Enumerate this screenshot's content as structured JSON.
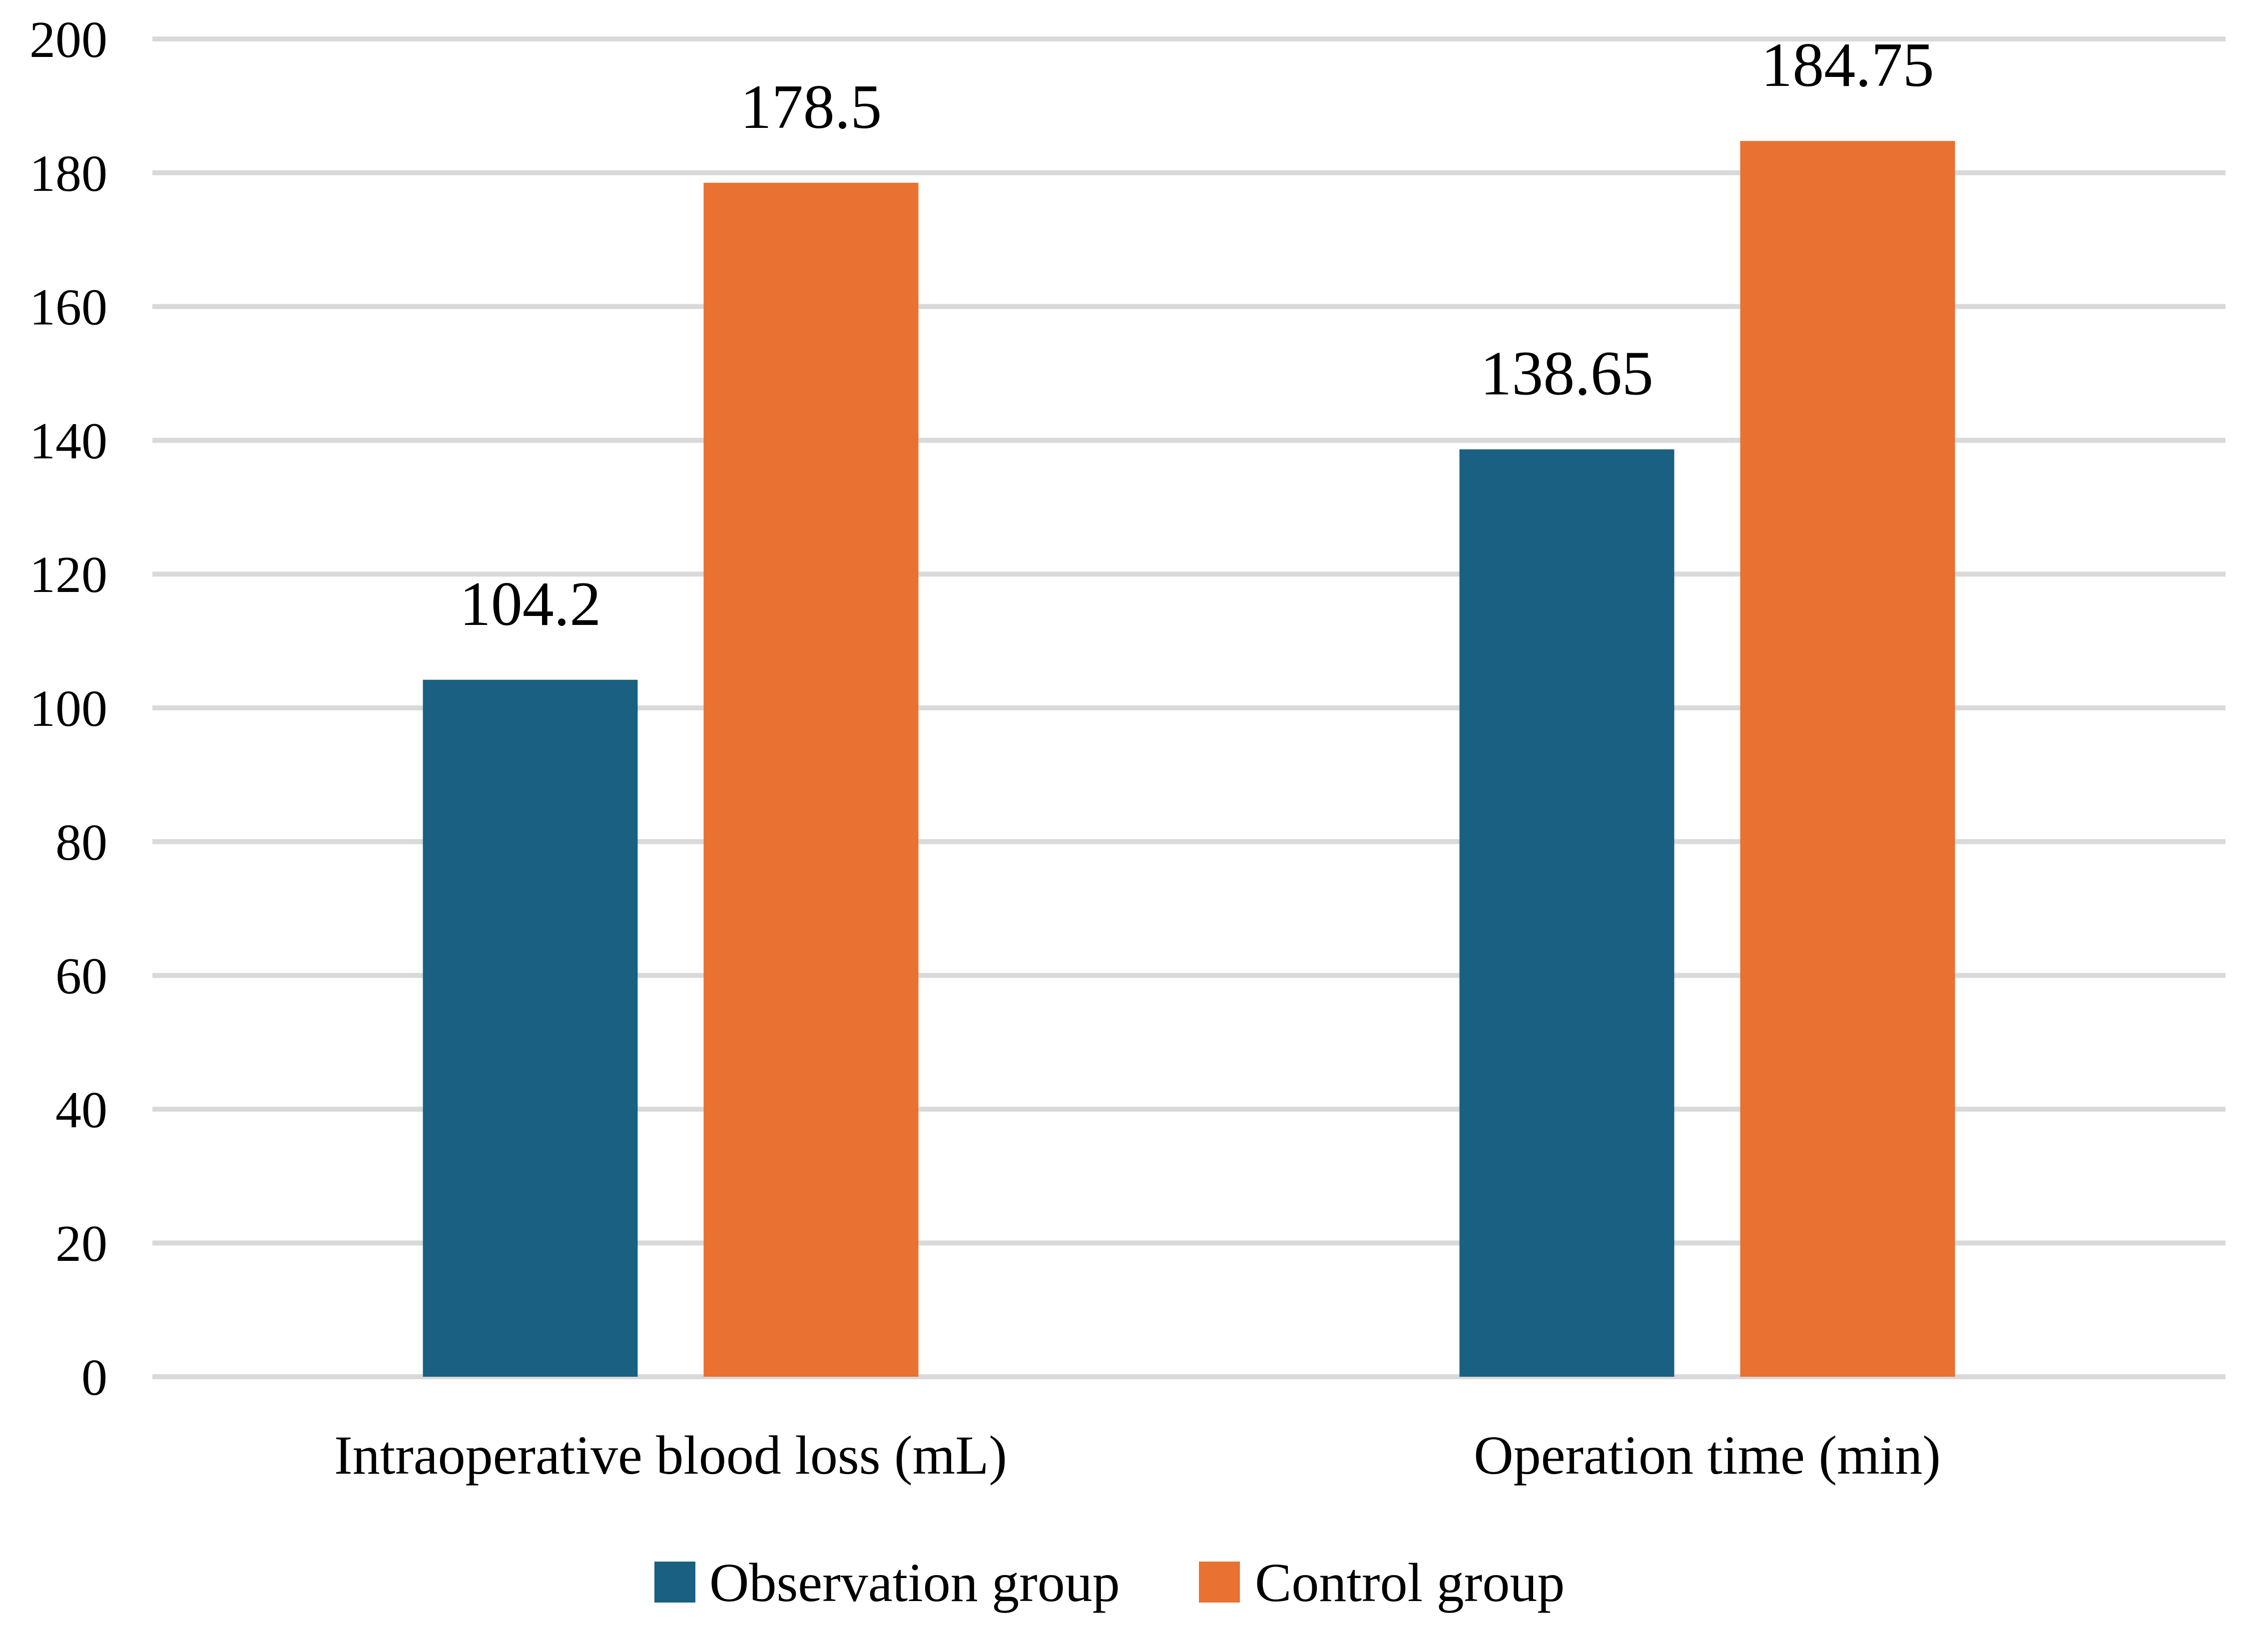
{
  "chart_data": {
    "type": "bar",
    "categories": [
      "Intraoperative blood loss (mL)",
      "Operation time (min)"
    ],
    "series": [
      {
        "name": "Observation group",
        "values": [
          104.2,
          138.65
        ],
        "color": "#1a6082"
      },
      {
        "name": "Control group",
        "values": [
          178.5,
          184.75
        ],
        "color": "#e97132"
      }
    ],
    "data_labels": [
      [
        "104.2",
        "138.65"
      ],
      [
        "178.5",
        "184.75"
      ]
    ],
    "ylim": [
      0,
      200
    ],
    "yticks": [
      0,
      20,
      40,
      60,
      80,
      100,
      120,
      140,
      160,
      180,
      200
    ],
    "grid": true,
    "legend_position": "bottom",
    "title": "",
    "xlabel": "",
    "ylabel": ""
  }
}
